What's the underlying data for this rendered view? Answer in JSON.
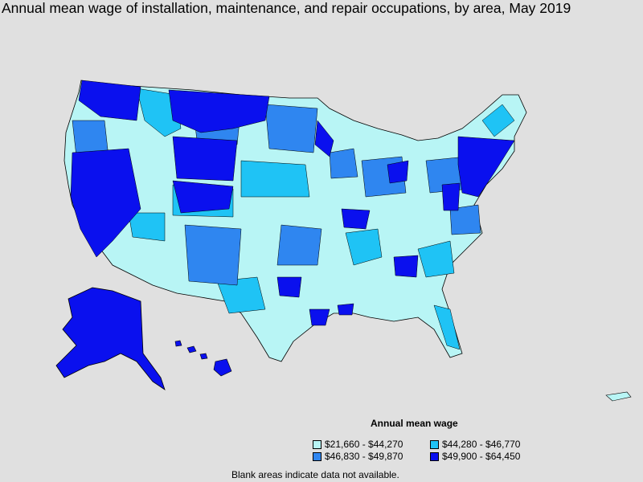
{
  "title": "Annual mean wage of installation, maintenance, and repair occupations, by area, May 2019",
  "legend": {
    "title": "Annual mean wage",
    "items": [
      {
        "label": "$21,660 - $44,270",
        "color": "#b8f5f5"
      },
      {
        "label": "$44,280 - $46,770",
        "color": "#1fc3f5"
      },
      {
        "label": "$46,830 - $49,870",
        "color": "#2f86f0"
      },
      {
        "label": "$49,900 - $64,450",
        "color": "#0a10ee"
      }
    ]
  },
  "footnote": "Blank areas indicate data not available."
}
